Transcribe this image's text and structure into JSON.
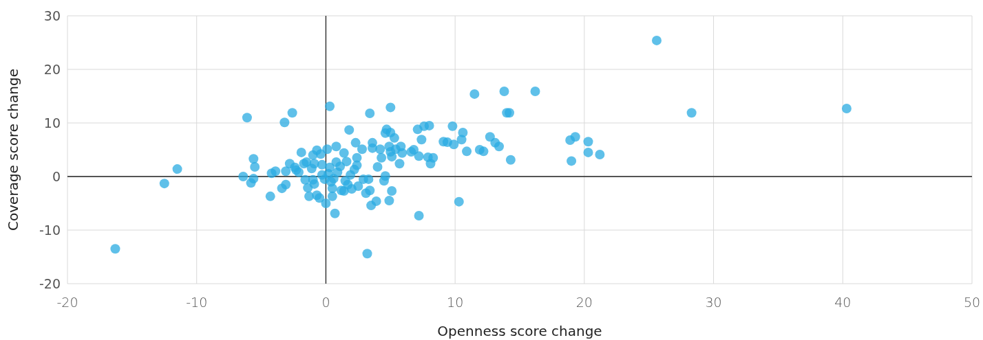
{
  "chart_data": {
    "type": "scatter",
    "xlabel": "Openness score change",
    "ylabel": "Coverage score change",
    "xlim": [
      -20,
      50
    ],
    "ylim": [
      -20,
      30
    ],
    "xticks": [
      -20,
      -10,
      0,
      10,
      20,
      30,
      40,
      50
    ],
    "yticks": [
      -20,
      -10,
      0,
      10,
      20,
      30
    ],
    "grid": true,
    "marker": "circle",
    "series": [
      {
        "color": "#29abe2",
        "x": [
          -16.3,
          -12.5,
          -11.5,
          -6.4,
          -6.1,
          -5.8,
          -5.6,
          -5.5,
          -5.6,
          -4.3,
          -4.2,
          -3.9,
          -3.4,
          -3.2,
          -3.1,
          -3.1,
          -2.8,
          -2.6,
          -2.4,
          -2.3,
          -2.1,
          -1.9,
          -1.7,
          -1.6,
          -1.5,
          -1.4,
          -1.3,
          -1.1,
          -1.0,
          -1.0,
          -0.9,
          -0.9,
          -0.7,
          -0.7,
          -0.5,
          -0.4,
          -0.3,
          -0.3,
          -0.1,
          0,
          0.1,
          0.3,
          0.2,
          0.3,
          0.4,
          0.5,
          0.5,
          0.6,
          0.7,
          0.8,
          0.8,
          0.9,
          1.1,
          1.2,
          1.4,
          1.4,
          1.5,
          1.6,
          1.7,
          1.8,
          1.9,
          2.0,
          2.2,
          2.3,
          2.4,
          2.4,
          2.5,
          2.8,
          2.9,
          3.1,
          3.2,
          3.3,
          3.4,
          3.4,
          3.5,
          3.6,
          3.6,
          3.9,
          4.0,
          4.2,
          4.3,
          4.5,
          4.6,
          4.6,
          4.7,
          4.9,
          4.9,
          5.0,
          5.0,
          5.0,
          5.1,
          5.1,
          5.3,
          5.4,
          5.7,
          5.8,
          5.9,
          6.6,
          6.8,
          7.1,
          7.2,
          7.2,
          7.4,
          7.6,
          7.9,
          8.0,
          8.1,
          8.3,
          9.1,
          9.4,
          9.8,
          9.9,
          10.3,
          10.5,
          10.6,
          10.9,
          11.5,
          11.9,
          12.2,
          12.7,
          13.1,
          13.4,
          13.8,
          14.0,
          14.2,
          14.3,
          16.2,
          18.9,
          19.3,
          19.0,
          20.3,
          20.3,
          21.2,
          25.6,
          28.3,
          40.3
        ],
        "values": [
          -13.5,
          -1.3,
          1.4,
          0,
          11.0,
          -1.2,
          3.3,
          1.8,
          -0.4,
          -3.7,
          0.6,
          1.0,
          -2.2,
          10.1,
          -1.5,
          1.0,
          2.4,
          11.9,
          1.7,
          1.2,
          0.8,
          4.5,
          2.4,
          -0.6,
          2.7,
          -2.1,
          -3.7,
          1.5,
          4.0,
          -0.6,
          -1.4,
          2.4,
          -3.5,
          4.9,
          -4.0,
          4.2,
          0.3,
          2.2,
          -0.5,
          -5.0,
          5.1,
          13.1,
          0.5,
          1.7,
          -1.0,
          -2.2,
          -3.7,
          -0.4,
          -6.9,
          2.7,
          5.6,
          0.8,
          1.9,
          -2.6,
          4.4,
          -2.7,
          -0.8,
          2.8,
          -1.5,
          8.7,
          0.3,
          -2.3,
          1.3,
          6.3,
          3.5,
          2.1,
          -1.8,
          5.1,
          -0.5,
          -3.1,
          -14.4,
          -0.5,
          11.8,
          -2.6,
          -5.4,
          5.3,
          6.3,
          -4.6,
          1.8,
          5.1,
          3.5,
          -0.8,
          0.1,
          8.1,
          8.8,
          5.6,
          -4.5,
          12.9,
          8.2,
          4.6,
          3.7,
          -2.7,
          7.2,
          5.1,
          2.4,
          5.6,
          4.4,
          4.6,
          5.0,
          8.8,
          -7.3,
          3.8,
          6.9,
          9.4,
          3.6,
          9.5,
          2.4,
          3.5,
          6.5,
          6.4,
          9.4,
          6.0,
          -4.7,
          6.9,
          8.2,
          4.7,
          15.4,
          5.0,
          4.7,
          7.4,
          6.3,
          5.6,
          15.9,
          11.9,
          11.9,
          3.1,
          15.9,
          6.8,
          7.4,
          2.9,
          6.5,
          4.5,
          4.1,
          25.4,
          11.9,
          12.7
        ]
      }
    ]
  }
}
